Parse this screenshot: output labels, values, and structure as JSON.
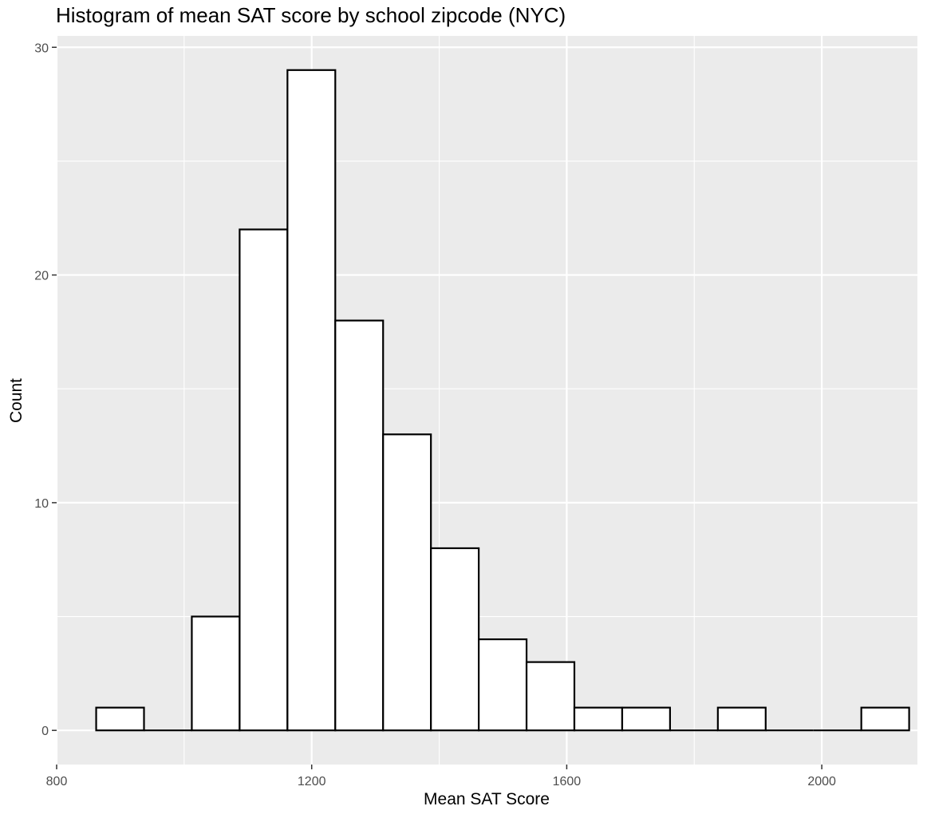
{
  "chart_data": {
    "type": "bar",
    "subtype": "histogram",
    "title": "Histogram of mean SAT score by school zipcode (NYC)",
    "xlabel": "Mean SAT Score",
    "ylabel": "Count",
    "xlim": [
      800,
      2150
    ],
    "ylim": [
      -1.5,
      30.5
    ],
    "xticks": [
      800,
      1200,
      1600,
      2000
    ],
    "xtick_labels": [
      "800",
      "1200",
      "1600",
      "2000"
    ],
    "yticks": [
      0,
      10,
      20,
      30
    ],
    "ytick_labels": [
      "0",
      "10",
      "20",
      "30"
    ],
    "grid": true,
    "legend": "none",
    "bins": [
      {
        "x0": 862,
        "x1": 937,
        "count": 1
      },
      {
        "x0": 937,
        "x1": 1012,
        "count": 0
      },
      {
        "x0": 1012,
        "x1": 1087,
        "count": 5
      },
      {
        "x0": 1087,
        "x1": 1162,
        "count": 22
      },
      {
        "x0": 1162,
        "x1": 1237,
        "count": 29
      },
      {
        "x0": 1237,
        "x1": 1312,
        "count": 18
      },
      {
        "x0": 1312,
        "x1": 1387,
        "count": 13
      },
      {
        "x0": 1387,
        "x1": 1462,
        "count": 8
      },
      {
        "x0": 1462,
        "x1": 1537,
        "count": 4
      },
      {
        "x0": 1537,
        "x1": 1612,
        "count": 3
      },
      {
        "x0": 1612,
        "x1": 1687,
        "count": 1
      },
      {
        "x0": 1687,
        "x1": 1762,
        "count": 1
      },
      {
        "x0": 1762,
        "x1": 1837,
        "count": 0
      },
      {
        "x0": 1837,
        "x1": 1912,
        "count": 1
      },
      {
        "x0": 1912,
        "x1": 1987,
        "count": 0
      },
      {
        "x0": 1987,
        "x1": 2062,
        "count": 0
      },
      {
        "x0": 2062,
        "x1": 2137,
        "count": 1
      }
    ],
    "colors": {
      "panel_background": "#ebebeb",
      "grid_major": "#ffffff",
      "bar_fill": "#ffffff",
      "bar_outline": "#000000",
      "tick_text": "#4d4d4d",
      "title_text": "#000000"
    }
  }
}
